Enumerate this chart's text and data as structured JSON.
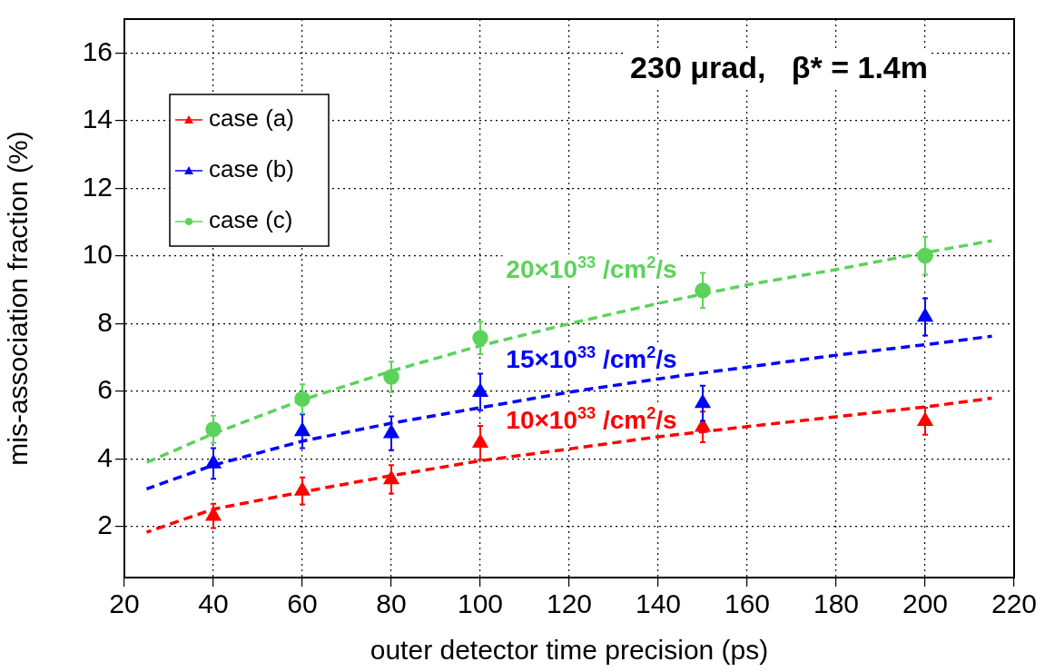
{
  "chart_data": {
    "type": "scatter",
    "xlabel": "outer detector time precision (ps)",
    "ylabel": "mis-association fraction (%)",
    "xlim": [
      20,
      220
    ],
    "xticks": [
      20,
      40,
      60,
      80,
      100,
      120,
      140,
      160,
      180,
      200,
      220
    ],
    "ylim": [
      0.5,
      17
    ],
    "yticks": [
      2,
      4,
      6,
      8,
      10,
      12,
      14,
      16
    ],
    "grid": true,
    "legend": "top left",
    "annotations": [
      "230 μrad,   β* = 1.4m"
    ],
    "series": [
      {
        "name": "case (a)",
        "color": "#ff0000",
        "type": "scatter",
        "marker": "triangle",
        "x": [
          40,
          60,
          80,
          100,
          150,
          200
        ],
        "values": [
          2.32,
          3.06,
          3.4,
          4.48,
          4.95,
          5.12
        ],
        "errors": [
          0.36,
          0.4,
          0.42,
          0.5,
          0.45,
          0.4
        ]
      },
      {
        "name": "case (b)",
        "color": "#0000ff",
        "type": "scatter",
        "marker": "triangle",
        "x": [
          40,
          60,
          80,
          100,
          150,
          200
        ],
        "values": [
          3.87,
          4.82,
          4.76,
          5.98,
          5.65,
          8.2
        ],
        "errors": [
          0.45,
          0.5,
          0.5,
          0.54,
          0.52,
          0.55
        ]
      },
      {
        "name": "case (c)",
        "color": "#5bd35b",
        "type": "scatter",
        "marker": "circle",
        "x": [
          40,
          60,
          80,
          100,
          150,
          200
        ],
        "values": [
          4.88,
          5.78,
          6.43,
          7.58,
          8.98,
          10.01
        ],
        "errors": [
          0.4,
          0.43,
          0.45,
          0.48,
          0.52,
          0.56
        ]
      },
      {
        "name": "10×10$^{33}$ /cm$^{2}$/s",
        "color": "#ff0000",
        "type": "line",
        "line_style": "dashed",
        "x": [
          25,
          40,
          60,
          80,
          100,
          120,
          140,
          160,
          180,
          200,
          215
        ],
        "values": [
          1.84,
          2.52,
          3.03,
          3.51,
          3.95,
          4.3,
          4.66,
          4.96,
          5.25,
          5.54,
          5.8
        ]
      },
      {
        "name": "15×10$^{33}$ /cm$^{2}$/s",
        "color": "#0000ff",
        "type": "line",
        "line_style": "dashed",
        "x": [
          25,
          40,
          60,
          80,
          100,
          120,
          140,
          160,
          180,
          200,
          215
        ],
        "values": [
          3.12,
          3.82,
          4.53,
          5.06,
          5.52,
          5.98,
          6.37,
          6.72,
          7.07,
          7.38,
          7.63
        ]
      },
      {
        "name": "20×10$^{33}$ /cm$^{2}$/s",
        "color": "#5bd35b",
        "type": "line",
        "line_style": "dashed",
        "x": [
          25,
          40,
          60,
          80,
          100,
          120,
          140,
          160,
          180,
          200,
          215
        ],
        "values": [
          3.9,
          4.75,
          5.75,
          6.6,
          7.35,
          8.0,
          8.6,
          9.15,
          9.6,
          10.1,
          10.45
        ]
      }
    ]
  }
}
